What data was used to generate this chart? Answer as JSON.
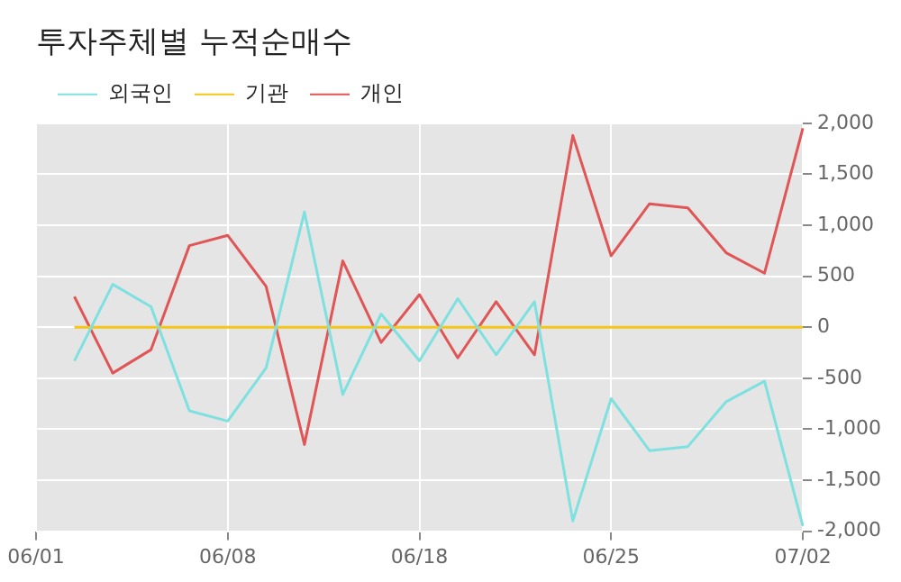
{
  "chart_data": {
    "type": "line",
    "title": "투자주체별 누적순매수",
    "categories": [
      "06/01",
      null,
      null,
      null,
      null,
      "06/08",
      null,
      null,
      null,
      null,
      "06/18",
      null,
      null,
      null,
      null,
      "06/25",
      null,
      null,
      null,
      null,
      "07/02"
    ],
    "series": [
      {
        "name": "외국인",
        "color": "#7fe0e0",
        "values": [
          null,
          -330,
          420,
          200,
          -820,
          -920,
          -400,
          1130,
          -660,
          130,
          -330,
          280,
          -270,
          250,
          -1900,
          -700,
          -1210,
          -1170,
          -730,
          -530,
          -1950
        ]
      },
      {
        "name": "기관",
        "color": "#f5c518",
        "values": [
          null,
          0,
          0,
          0,
          0,
          0,
          0,
          0,
          0,
          0,
          0,
          0,
          0,
          0,
          0,
          0,
          0,
          0,
          0,
          0,
          0
        ]
      },
      {
        "name": "개인",
        "color": "#e05555",
        "values": [
          null,
          300,
          -450,
          -220,
          800,
          900,
          400,
          -1150,
          650,
          -150,
          320,
          -300,
          250,
          -270,
          1880,
          700,
          1210,
          1170,
          730,
          530,
          1950
        ]
      }
    ],
    "ylim": [
      -2000,
      2000
    ],
    "yticks": [
      {
        "value": -2000,
        "label": "-2,000"
      },
      {
        "value": -1500,
        "label": "-1,500"
      },
      {
        "value": -1000,
        "label": "-1,000"
      },
      -500,
      0,
      500,
      {
        "value": 1000,
        "label": "1,000"
      },
      {
        "value": 1500,
        "label": "1,500"
      },
      {
        "value": 2000,
        "label": "2,000"
      }
    ],
    "grid": true,
    "legend": "top left",
    "marker": "none",
    "line_style": "solid"
  }
}
